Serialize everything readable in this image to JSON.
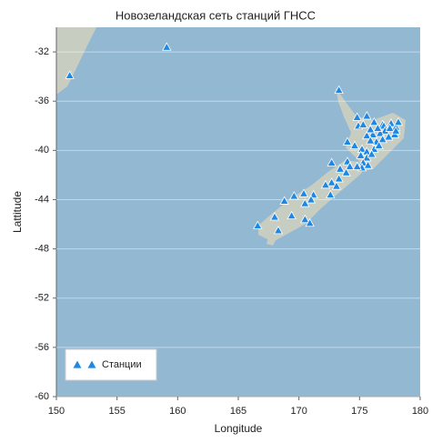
{
  "chart_data": {
    "type": "scatter",
    "title": "Новозеландская сеть станций ГНСС",
    "x_label": "Longitude",
    "y_label": "Lattitude",
    "xlim": [
      150,
      180
    ],
    "ylim": [
      -60,
      -30
    ],
    "xticks": [
      150,
      155,
      160,
      165,
      170,
      175,
      180
    ],
    "yticks": [
      -60,
      -56,
      -52,
      -48,
      -44,
      -40,
      -36,
      -32
    ],
    "grid": "y",
    "legend": "lower left",
    "series": [
      {
        "name": "Станции",
        "color": "#1e88e5",
        "x": [
          151.1,
          159.1,
          173.3,
          174.8,
          175.6,
          174.9,
          175.3,
          176.2,
          176.9,
          177.0,
          177.6,
          178.0,
          178.2,
          177.1,
          176.7,
          176.1,
          175.6,
          177.9,
          177.4,
          176.9,
          176.4,
          175.9,
          174.0,
          174.6,
          175.2,
          175.6,
          176.2,
          176.6,
          175.1,
          175.6,
          176.0,
          175.3,
          175.7,
          175.2,
          174.8,
          177.5,
          178.0,
          176.5,
          175.9,
          174.0,
          174.2,
          173.4,
          172.7,
          173.9,
          173.3,
          172.7,
          172.2,
          173.1,
          171.2,
          172.6,
          171.0,
          170.4,
          169.6,
          170.5,
          168.8,
          169.4,
          170.5,
          170.9,
          168.0,
          168.3,
          166.6
        ],
        "y": [
          -33.9,
          -31.6,
          -35.1,
          -37.3,
          -37.2,
          -38.0,
          -37.9,
          -37.7,
          -37.9,
          -38.0,
          -37.8,
          -38.1,
          -37.7,
          -38.4,
          -38.6,
          -38.7,
          -38.8,
          -38.7,
          -38.9,
          -39.1,
          -39.3,
          -39.2,
          -39.3,
          -39.6,
          -39.9,
          -40.1,
          -39.9,
          -39.6,
          -40.4,
          -40.6,
          -40.3,
          -41.0,
          -41.2,
          -41.4,
          -41.3,
          -38.2,
          -38.4,
          -38.2,
          -38.3,
          -40.9,
          -41.3,
          -41.5,
          -41.0,
          -41.8,
          -42.3,
          -42.6,
          -42.8,
          -42.9,
          -43.6,
          -43.6,
          -44.0,
          -43.5,
          -43.7,
          -44.3,
          -44.1,
          -45.3,
          -45.6,
          -45.9,
          -45.4,
          -46.5,
          -46.1
        ]
      }
    ]
  }
}
